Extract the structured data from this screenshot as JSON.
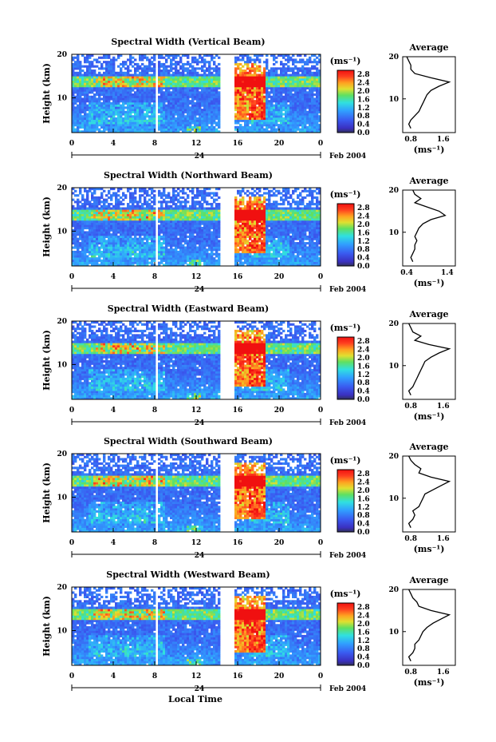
{
  "figure": {
    "x_axis_title": "Local Time",
    "date_label": "Feb 2004"
  },
  "chart_data": [
    {
      "type": "heatmap",
      "title": "Spectral Width (Vertical Beam)",
      "ylabel": "Height (km)",
      "xlabel": "Local Time",
      "x_ticks": [
        "0",
        "4",
        "8",
        "12",
        "16",
        "20",
        "0"
      ],
      "x_range_hours": [
        0,
        24
      ],
      "day_label": "24",
      "y_ticks": [
        "20",
        "10"
      ],
      "ylim": [
        2,
        20
      ],
      "colorbar": {
        "unit": "(ms⁻¹)",
        "ticks": [
          "2.8",
          "2.4",
          "2.0",
          "1.6",
          "1.2",
          "0.8",
          "0.4",
          "0.0"
        ],
        "min": 0.0,
        "max": 3.0
      },
      "data_gaps_hours": [
        [
          8.0,
          8.2
        ],
        [
          14.2,
          15.6
        ]
      ],
      "average_profile": {
        "title": "Average",
        "xlabel": "(ms⁻¹)",
        "x_ticks": [
          "0.8",
          "1.6"
        ],
        "xlim": [
          0.6,
          1.9
        ],
        "heights": [
          3,
          4,
          5,
          6,
          7,
          8,
          9,
          10,
          11,
          12,
          13,
          14,
          15,
          16,
          17,
          18,
          19,
          20
        ],
        "values": [
          0.8,
          0.75,
          0.8,
          0.9,
          1.0,
          1.05,
          1.1,
          1.15,
          1.2,
          1.3,
          1.5,
          1.75,
          1.3,
          0.9,
          0.8,
          0.8,
          0.75,
          0.7
        ]
      }
    },
    {
      "type": "heatmap",
      "title": "Spectral Width (Northward Beam)",
      "ylabel": "Height (km)",
      "xlabel": "Local Time",
      "x_ticks": [
        "0",
        "4",
        "8",
        "12",
        "16",
        "20",
        "0"
      ],
      "x_range_hours": [
        0,
        24
      ],
      "day_label": "24",
      "y_ticks": [
        "20",
        "10"
      ],
      "ylim": [
        2,
        20
      ],
      "colorbar": {
        "unit": "(ms⁻¹)",
        "ticks": [
          "2.8",
          "2.4",
          "2.0",
          "1.6",
          "1.2",
          "0.8",
          "0.4",
          "0.0"
        ],
        "min": 0.0,
        "max": 3.0
      },
      "data_gaps_hours": [
        [
          8.0,
          8.2
        ],
        [
          14.2,
          15.6
        ]
      ],
      "average_profile": {
        "title": "Average",
        "xlabel": "(ms⁻¹)",
        "x_ticks": [
          "0.4",
          "1.4"
        ],
        "xlim": [
          0.3,
          1.6
        ],
        "heights": [
          3,
          4,
          5,
          6,
          7,
          8,
          9,
          10,
          11,
          12,
          13,
          14,
          15,
          16,
          17,
          18,
          19,
          20
        ],
        "values": [
          0.55,
          0.5,
          0.55,
          0.6,
          0.6,
          0.65,
          0.6,
          0.65,
          0.7,
          0.8,
          1.0,
          1.35,
          1.2,
          0.9,
          0.6,
          0.75,
          0.6,
          0.55
        ]
      }
    },
    {
      "type": "heatmap",
      "title": "Spectral Width (Eastward Beam)",
      "ylabel": "Height (km)",
      "xlabel": "Local Time",
      "x_ticks": [
        "0",
        "4",
        "8",
        "12",
        "16",
        "20",
        "0"
      ],
      "x_range_hours": [
        0,
        24
      ],
      "day_label": "24",
      "y_ticks": [
        "20",
        "10"
      ],
      "ylim": [
        2,
        20
      ],
      "colorbar": {
        "unit": "(ms⁻¹)",
        "ticks": [
          "2.8",
          "2.4",
          "2.0",
          "1.6",
          "1.2",
          "0.8",
          "0.4",
          "0.0"
        ],
        "min": 0.0,
        "max": 3.0
      },
      "data_gaps_hours": [
        [
          8.0,
          8.2
        ],
        [
          14.2,
          15.6
        ]
      ],
      "average_profile": {
        "title": "Average",
        "xlabel": "(ms⁻¹)",
        "x_ticks": [
          "0.8",
          "1.6"
        ],
        "xlim": [
          0.6,
          1.9
        ],
        "heights": [
          3,
          4,
          5,
          6,
          7,
          8,
          9,
          10,
          11,
          12,
          13,
          14,
          15,
          16,
          17,
          18,
          19,
          20
        ],
        "values": [
          0.8,
          0.75,
          0.85,
          0.9,
          0.95,
          1.0,
          1.05,
          1.1,
          1.15,
          1.3,
          1.5,
          1.75,
          1.25,
          0.9,
          1.05,
          0.85,
          0.8,
          0.75
        ]
      }
    },
    {
      "type": "heatmap",
      "title": "Spectral Width (Southward Beam)",
      "ylabel": "Height (km)",
      "xlabel": "Local Time",
      "x_ticks": [
        "0",
        "4",
        "8",
        "12",
        "16",
        "20",
        "0"
      ],
      "x_range_hours": [
        0,
        24
      ],
      "day_label": "24",
      "y_ticks": [
        "20",
        "10"
      ],
      "ylim": [
        2,
        20
      ],
      "colorbar": {
        "unit": "(ms⁻¹)",
        "ticks": [
          "2.8",
          "2.4",
          "2.0",
          "1.6",
          "1.2",
          "0.8",
          "0.4",
          "0.0"
        ],
        "min": 0.0,
        "max": 3.0
      },
      "data_gaps_hours": [
        [
          8.0,
          8.2
        ],
        [
          14.2,
          15.6
        ]
      ],
      "average_profile": {
        "title": "Average",
        "xlabel": "(ms⁻¹)",
        "x_ticks": [
          "0.8",
          "1.6"
        ],
        "xlim": [
          0.6,
          1.9
        ],
        "heights": [
          3,
          4,
          5,
          6,
          7,
          8,
          9,
          10,
          11,
          12,
          13,
          14,
          15,
          16,
          17,
          18,
          19,
          20
        ],
        "values": [
          0.8,
          0.75,
          0.85,
          0.9,
          0.85,
          1.0,
          1.05,
          1.1,
          1.15,
          1.35,
          1.55,
          1.75,
          1.3,
          1.0,
          1.05,
          0.9,
          0.8,
          0.75
        ]
      }
    },
    {
      "type": "heatmap",
      "title": "Spectral Width (Westward Beam)",
      "ylabel": "Height (km)",
      "xlabel": "Local Time",
      "x_ticks": [
        "0",
        "4",
        "8",
        "12",
        "16",
        "20",
        "0"
      ],
      "x_range_hours": [
        0,
        24
      ],
      "day_label": "24",
      "y_ticks": [
        "20",
        "10"
      ],
      "ylim": [
        2,
        20
      ],
      "colorbar": {
        "unit": "(ms⁻¹)",
        "ticks": [
          "2.8",
          "2.4",
          "2.0",
          "1.6",
          "1.2",
          "0.8",
          "0.4",
          "0.0"
        ],
        "min": 0.0,
        "max": 3.0
      },
      "data_gaps_hours": [
        [
          8.0,
          8.2
        ],
        [
          14.2,
          15.6
        ]
      ],
      "average_profile": {
        "title": "Average",
        "xlabel": "(ms⁻¹)",
        "x_ticks": [
          "0.8",
          "1.6"
        ],
        "xlim": [
          0.6,
          1.9
        ],
        "heights": [
          3,
          4,
          5,
          6,
          7,
          8,
          9,
          10,
          11,
          12,
          13,
          14,
          15,
          16,
          17,
          18,
          19,
          20
        ],
        "values": [
          0.8,
          0.75,
          0.85,
          0.9,
          0.9,
          1.0,
          1.05,
          1.1,
          1.2,
          1.35,
          1.55,
          1.75,
          1.3,
          1.0,
          0.95,
          0.85,
          0.8,
          0.75
        ]
      }
    }
  ]
}
